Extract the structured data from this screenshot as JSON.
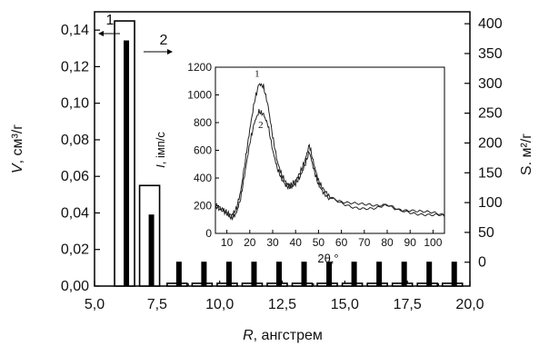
{
  "chart_data": [
    {
      "type": "bar",
      "xlabel": "R",
      "xlabel_unit": ", ангстрем",
      "ylabel_left": "V",
      "ylabel_left_unit": ", см³/г",
      "ylabel_right": "S. м²/г",
      "xlim": [
        5.0,
        20.0
      ],
      "ylim_left": [
        0.0,
        0.15
      ],
      "ylim_right": [
        -40,
        420
      ],
      "x_ticks": [
        "5,0",
        "7,5",
        "10,0",
        "12,5",
        "15,0",
        "17,5",
        "20,0"
      ],
      "x_tick_values": [
        5.0,
        7.5,
        10.0,
        12.5,
        15.0,
        17.5,
        20.0
      ],
      "y_left_ticks": [
        "0,00",
        "0,02",
        "0,04",
        "0,06",
        "0,08",
        "0,10",
        "0,12",
        "0,14"
      ],
      "y_left_tick_values": [
        0.0,
        0.02,
        0.04,
        0.06,
        0.08,
        0.1,
        0.12,
        0.14
      ],
      "y_right_ticks": [
        "0",
        "50",
        "100",
        "150",
        "200",
        "250",
        "300",
        "350",
        "400"
      ],
      "y_right_tick_values": [
        0,
        50,
        100,
        150,
        200,
        250,
        300,
        350,
        400
      ],
      "grid": false,
      "series": [
        {
          "name": "1",
          "axis": "right",
          "style": "filled",
          "x": [
            6.2,
            7.2,
            8.3,
            9.3,
            10.3,
            11.3,
            12.3,
            13.3,
            14.3,
            15.3,
            16.3,
            17.3,
            18.3,
            19.3
          ],
          "values": [
            372,
            80,
            0.9,
            0.9,
            0.9,
            0.9,
            0.9,
            0.9,
            0.9,
            0.9,
            0.9,
            0.9,
            0.9,
            0.9
          ]
        },
        {
          "name": "2",
          "axis": "left",
          "style": "outline",
          "x": [
            6.2,
            7.2,
            8.3,
            9.3,
            10.3,
            11.3,
            12.3,
            13.3,
            14.3,
            15.3,
            16.3,
            17.3,
            18.3,
            19.3
          ],
          "values": [
            0.145,
            0.055,
            0.0015,
            0.0015,
            0.0015,
            0.0015,
            0.0015,
            0.0015,
            0.0015,
            0.0015,
            0.0015,
            0.0015,
            0.0015,
            0.0015
          ]
        }
      ],
      "annotations": [
        {
          "text": "1",
          "arrow": "left"
        },
        {
          "text": "2",
          "arrow": "right"
        }
      ]
    },
    {
      "type": "line",
      "xlabel": "2θ,°",
      "ylabel": "I",
      "ylabel_unit": ", імп/с",
      "xlim": [
        5,
        105
      ],
      "ylim": [
        0,
        1200
      ],
      "x_ticks": [
        "10",
        "20",
        "30",
        "40",
        "50",
        "60",
        "70",
        "80",
        "90",
        "100"
      ],
      "x_tick_values": [
        10,
        20,
        30,
        40,
        50,
        60,
        70,
        80,
        90,
        100
      ],
      "y_ticks": [
        "0",
        "200",
        "400",
        "600",
        "800",
        "1000",
        "1200"
      ],
      "y_tick_values": [
        0,
        200,
        400,
        600,
        800,
        1000,
        1200
      ],
      "grid": false,
      "series": [
        {
          "name": "1",
          "x": [
            5,
            8,
            10,
            12,
            14,
            16,
            18,
            20,
            22,
            24,
            26,
            28,
            30,
            32,
            34,
            36,
            38,
            40,
            42,
            44,
            46,
            48,
            50,
            52,
            55,
            60,
            65,
            70,
            75,
            80,
            85,
            90,
            95,
            100,
            105
          ],
          "values": [
            210,
            180,
            150,
            130,
            170,
            300,
            520,
            750,
            950,
            1080,
            1060,
            920,
            700,
            520,
            420,
            360,
            350,
            380,
            440,
            520,
            640,
            500,
            380,
            320,
            270,
            240,
            220,
            200,
            190,
            210,
            180,
            170,
            150,
            140,
            130
          ]
        },
        {
          "name": "2",
          "x": [
            5,
            8,
            10,
            12,
            14,
            16,
            18,
            20,
            22,
            24,
            26,
            28,
            30,
            32,
            34,
            36,
            38,
            40,
            42,
            44,
            46,
            48,
            50,
            52,
            55,
            60,
            65,
            70,
            75,
            80,
            85,
            90,
            95,
            100,
            105
          ],
          "values": [
            200,
            170,
            140,
            110,
            140,
            250,
            450,
            650,
            800,
            880,
            860,
            780,
            600,
            470,
            390,
            340,
            330,
            360,
            410,
            490,
            590,
            460,
            350,
            300,
            250,
            220,
            200,
            185,
            175,
            195,
            170,
            160,
            145,
            130,
            120
          ]
        }
      ]
    }
  ]
}
